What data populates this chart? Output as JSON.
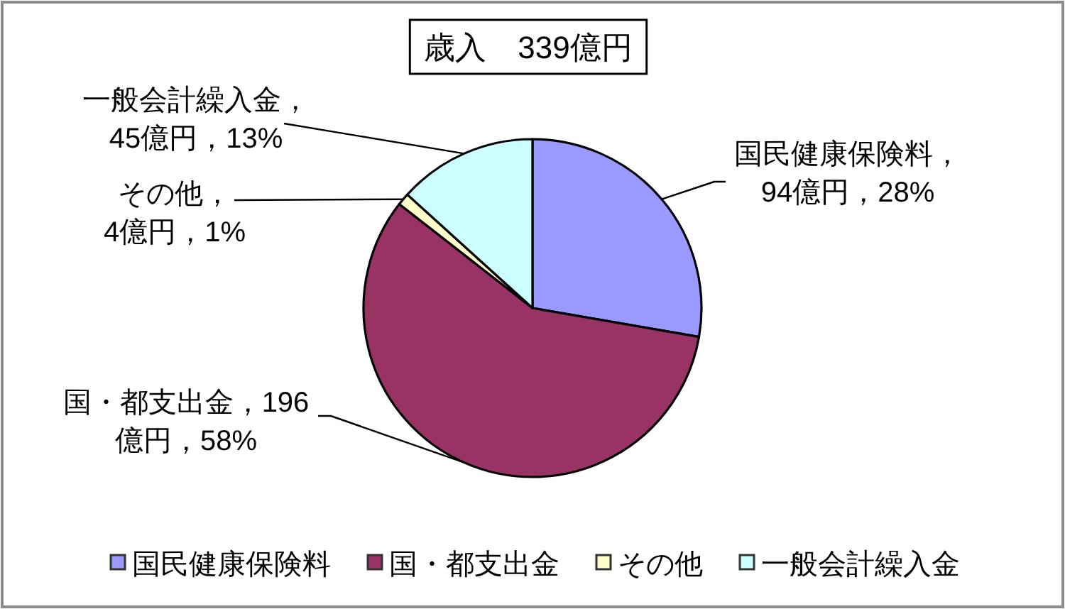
{
  "chart_data": {
    "type": "pie",
    "title": "歳入　339億円",
    "categories": [
      "国民健康保険料",
      "国・都支出金",
      "その他",
      "一般会計繰入金"
    ],
    "values": [
      94,
      196,
      4,
      45
    ],
    "colors": [
      "#9999ff",
      "#993366",
      "#ffffcc",
      "#ccffff"
    ],
    "value_labels": [
      "国民健康保険料，94億円，28%",
      "国・都支出金，196億円，58%",
      "その他，4億円，1%",
      "一般会計繰入金，45億円，13%"
    ],
    "legend": "bottom"
  }
}
